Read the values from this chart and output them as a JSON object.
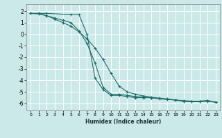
{
  "title": "",
  "xlabel": "Humidex (Indice chaleur)",
  "bg_color": "#cce9e9",
  "grid_color": "#ffffff",
  "line_color": "#1e6b6b",
  "xlim": [
    -0.5,
    23.5
  ],
  "ylim": [
    -6.6,
    2.6
  ],
  "xticks": [
    0,
    1,
    2,
    3,
    4,
    5,
    6,
    7,
    8,
    9,
    10,
    11,
    12,
    13,
    14,
    15,
    16,
    17,
    18,
    19,
    20,
    21,
    22,
    23
  ],
  "yticks": [
    -6,
    -5,
    -4,
    -3,
    -2,
    -1,
    0,
    1,
    2
  ],
  "line1_x": [
    0,
    1,
    2,
    3,
    4,
    5,
    6,
    7,
    8,
    9,
    10,
    11,
    12,
    13,
    14,
    15,
    16,
    17,
    18,
    19,
    20,
    21,
    22,
    23
  ],
  "line1_y": [
    1.8,
    1.75,
    1.6,
    1.4,
    1.2,
    1.0,
    0.3,
    -0.8,
    -2.5,
    -4.6,
    -5.2,
    -5.2,
    -5.3,
    -5.4,
    -5.45,
    -5.5,
    -5.55,
    -5.6,
    -5.7,
    -5.75,
    -5.8,
    -5.8,
    -5.75,
    -5.9
  ],
  "line2_x": [
    0,
    1,
    2,
    5,
    6,
    7,
    8,
    9,
    10,
    11,
    12,
    13,
    14,
    15,
    16,
    17,
    18,
    19,
    20,
    21,
    22,
    23
  ],
  "line2_y": [
    1.8,
    1.8,
    1.8,
    1.7,
    1.7,
    0.0,
    -3.8,
    -4.8,
    -5.3,
    -5.3,
    -5.4,
    -5.5,
    -5.5,
    -5.5,
    -5.6,
    -5.65,
    -5.7,
    -5.8,
    -5.85,
    -5.8,
    -5.75,
    -5.9
  ],
  "line3_x": [
    0,
    1,
    2,
    3,
    4,
    5,
    6,
    7,
    8,
    9,
    10,
    11,
    12,
    13,
    14,
    15,
    16,
    17,
    18,
    19,
    20,
    21,
    22,
    23
  ],
  "line3_y": [
    1.8,
    1.8,
    1.6,
    1.3,
    1.0,
    0.7,
    0.2,
    -0.4,
    -1.2,
    -2.2,
    -3.4,
    -4.5,
    -5.0,
    -5.2,
    -5.35,
    -5.45,
    -5.55,
    -5.65,
    -5.7,
    -5.8,
    -5.85,
    -5.85,
    -5.8,
    -5.9
  ]
}
